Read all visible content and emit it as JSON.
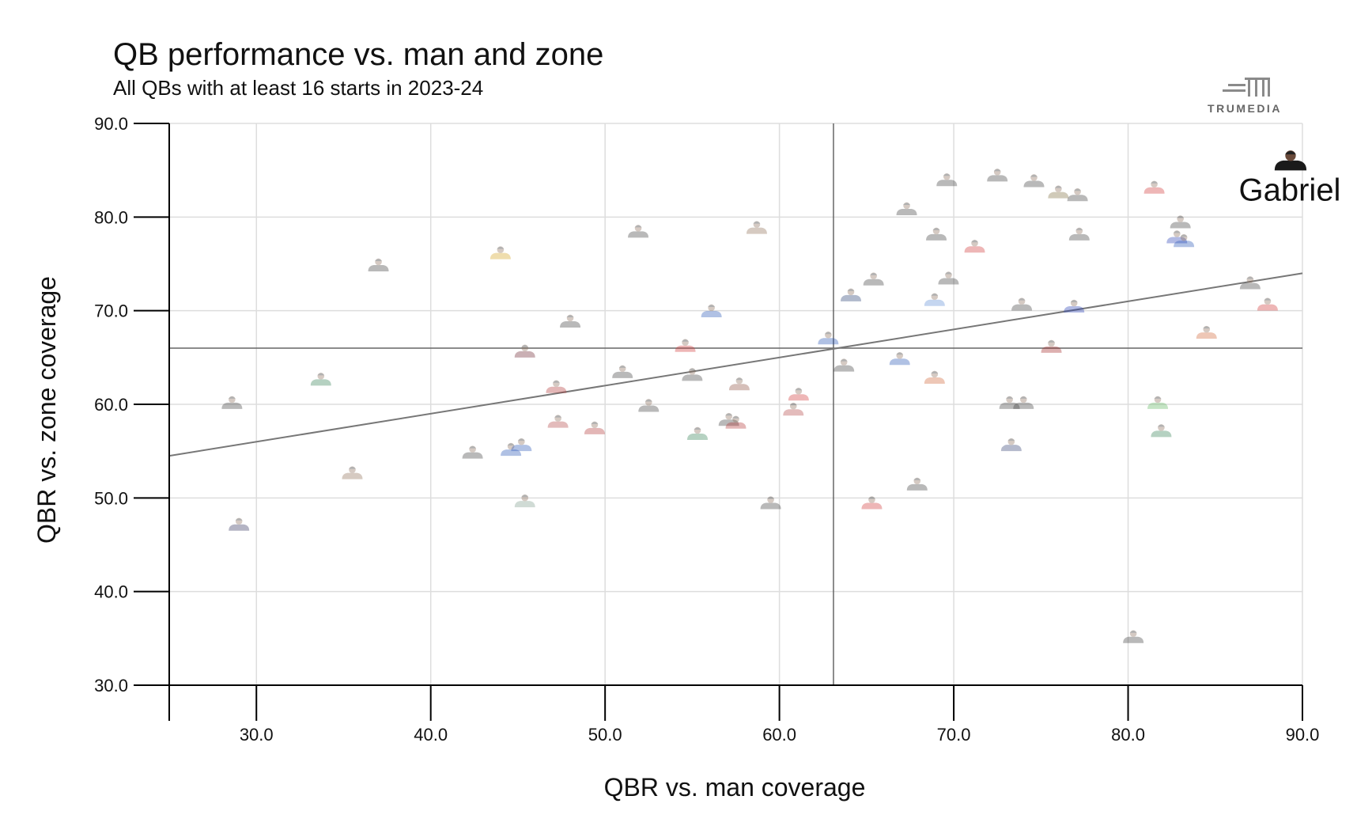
{
  "header": {
    "title": "QB performance vs. man and zone",
    "subtitle": "All QBs with at least 16 starts in 2023-24"
  },
  "logo": {
    "text": "TRUMEDIA"
  },
  "colors": {
    "grid": "#dddddd",
    "axis": "#000000",
    "reference": "#666666",
    "trend": "#777777",
    "faded_opacity": 0.35
  },
  "chart_data": {
    "type": "scatter",
    "title": "QB performance vs. man and zone",
    "subtitle": "All QBs with at least 16 starts in 2023-24",
    "xlabel": "QBR vs. man coverage",
    "ylabel": "QBR vs. zone coverage",
    "xlim": [
      25,
      90
    ],
    "ylim": [
      30,
      90
    ],
    "xticks": [
      30,
      40,
      50,
      60,
      70,
      80,
      90
    ],
    "yticks": [
      30,
      40,
      50,
      60,
      70,
      80,
      90
    ],
    "x_tick_labels": [
      "30.0",
      "40.0",
      "50.0",
      "60.0",
      "70.0",
      "80.0",
      "90.0"
    ],
    "y_tick_labels": [
      "30.0",
      "40.0",
      "50.0",
      "60.0",
      "70.0",
      "80.0",
      "90.0"
    ],
    "grid": true,
    "reference_lines": {
      "x": 63.1,
      "y": 66.0
    },
    "trendline": {
      "x1": 25,
      "y1": 54.5,
      "x2": 90,
      "y2": 74.0
    },
    "highlight": {
      "name": "Gabriel",
      "x": 89.5,
      "y": 86.0
    },
    "points": [
      {
        "x": 28.6,
        "y": 59.5,
        "c": "#3a3a3a"
      },
      {
        "x": 29.0,
        "y": 46.5,
        "c": "#2b2b5a"
      },
      {
        "x": 33.7,
        "y": 62.0,
        "c": "#2e7d4f"
      },
      {
        "x": 35.5,
        "y": 52.0,
        "c": "#8b6b4f"
      },
      {
        "x": 37.0,
        "y": 74.2,
        "c": "#3a3a3a"
      },
      {
        "x": 42.4,
        "y": 54.2,
        "c": "#3a3a3a"
      },
      {
        "x": 44.0,
        "y": 75.5,
        "c": "#d4a017"
      },
      {
        "x": 44.6,
        "y": 54.5,
        "c": "#1f4fb5"
      },
      {
        "x": 45.2,
        "y": 55.0,
        "c": "#1f4fb5"
      },
      {
        "x": 45.4,
        "y": 65.0,
        "c": "#6b1f2a"
      },
      {
        "x": 45.4,
        "y": 49.0,
        "c": "#7a9a8a"
      },
      {
        "x": 47.2,
        "y": 61.2,
        "c": "#b03030"
      },
      {
        "x": 47.3,
        "y": 57.5,
        "c": "#b04040"
      },
      {
        "x": 48.0,
        "y": 68.2,
        "c": "#3a3a3a"
      },
      {
        "x": 49.4,
        "y": 56.8,
        "c": "#b03030"
      },
      {
        "x": 51.0,
        "y": 62.8,
        "c": "#3a3a3a"
      },
      {
        "x": 51.9,
        "y": 77.8,
        "c": "#3a3a3a"
      },
      {
        "x": 52.5,
        "y": 59.2,
        "c": "#3a3a3a"
      },
      {
        "x": 54.6,
        "y": 65.6,
        "c": "#d03030"
      },
      {
        "x": 55.0,
        "y": 62.5,
        "c": "#3a3a3a"
      },
      {
        "x": 55.3,
        "y": 56.2,
        "c": "#2e7d4f"
      },
      {
        "x": 56.1,
        "y": 69.3,
        "c": "#1f4fb5"
      },
      {
        "x": 57.1,
        "y": 57.7,
        "c": "#3a3a3a"
      },
      {
        "x": 57.5,
        "y": 57.4,
        "c": "#b03030"
      },
      {
        "x": 57.7,
        "y": 61.5,
        "c": "#8b4a3a"
      },
      {
        "x": 58.7,
        "y": 78.2,
        "c": "#8b6b4f"
      },
      {
        "x": 59.5,
        "y": 48.8,
        "c": "#3a3a3a"
      },
      {
        "x": 60.8,
        "y": 58.8,
        "c": "#b04040"
      },
      {
        "x": 61.1,
        "y": 60.4,
        "c": "#d03030"
      },
      {
        "x": 62.8,
        "y": 66.4,
        "c": "#1f4fb5"
      },
      {
        "x": 63.7,
        "y": 63.5,
        "c": "#3a3a3a"
      },
      {
        "x": 64.1,
        "y": 71.0,
        "c": "#1f3a6e"
      },
      {
        "x": 65.3,
        "y": 48.8,
        "c": "#d03030"
      },
      {
        "x": 65.4,
        "y": 72.7,
        "c": "#3a3a3a"
      },
      {
        "x": 66.9,
        "y": 64.2,
        "c": "#1f4fb5"
      },
      {
        "x": 67.3,
        "y": 80.2,
        "c": "#3a3a3a"
      },
      {
        "x": 67.9,
        "y": 50.8,
        "c": "#3a3a3a"
      },
      {
        "x": 68.9,
        "y": 70.5,
        "c": "#5a8ad4"
      },
      {
        "x": 68.9,
        "y": 62.2,
        "c": "#d06030"
      },
      {
        "x": 69.0,
        "y": 77.5,
        "c": "#3a3a3a"
      },
      {
        "x": 69.6,
        "y": 83.3,
        "c": "#3a3a3a"
      },
      {
        "x": 69.7,
        "y": 72.8,
        "c": "#3a3a3a"
      },
      {
        "x": 71.2,
        "y": 76.2,
        "c": "#d03030"
      },
      {
        "x": 72.5,
        "y": 83.8,
        "c": "#3a3a3a"
      },
      {
        "x": 73.2,
        "y": 59.5,
        "c": "#3a3a3a"
      },
      {
        "x": 73.3,
        "y": 55.0,
        "c": "#2b3a6e"
      },
      {
        "x": 73.9,
        "y": 70.0,
        "c": "#3a3a3a"
      },
      {
        "x": 74.0,
        "y": 59.5,
        "c": "#3a3a3a"
      },
      {
        "x": 74.6,
        "y": 83.2,
        "c": "#3a3a3a"
      },
      {
        "x": 75.6,
        "y": 65.5,
        "c": "#a02020"
      },
      {
        "x": 76.0,
        "y": 82.0,
        "c": "#7a6a3a"
      },
      {
        "x": 76.9,
        "y": 69.8,
        "c": "#1f3ab5"
      },
      {
        "x": 77.1,
        "y": 81.7,
        "c": "#3a3a3a"
      },
      {
        "x": 77.2,
        "y": 77.5,
        "c": "#3a3a3a"
      },
      {
        "x": 80.3,
        "y": 34.5,
        "c": "#3a3a3a"
      },
      {
        "x": 81.5,
        "y": 82.5,
        "c": "#d03030"
      },
      {
        "x": 81.7,
        "y": 59.5,
        "c": "#5ab55a"
      },
      {
        "x": 81.9,
        "y": 56.5,
        "c": "#2e7d4f"
      },
      {
        "x": 82.8,
        "y": 77.2,
        "c": "#1f3ab5"
      },
      {
        "x": 83.0,
        "y": 78.8,
        "c": "#3a3a3a"
      },
      {
        "x": 83.2,
        "y": 76.8,
        "c": "#1f4fb5"
      },
      {
        "x": 84.5,
        "y": 67.0,
        "c": "#d06030"
      },
      {
        "x": 87.0,
        "y": 72.3,
        "c": "#3a3a3a"
      },
      {
        "x": 88.0,
        "y": 70.0,
        "c": "#d03030"
      }
    ]
  }
}
